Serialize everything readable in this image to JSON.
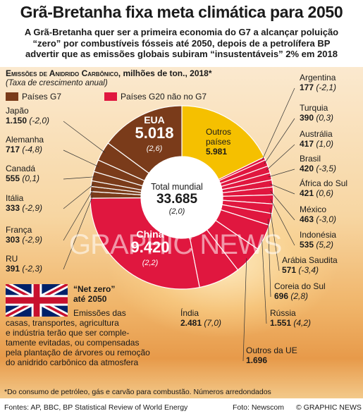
{
  "headline": "Grã-Bretanha fixa meta climática para 2050",
  "subhead": [
    "A Grã-Bretanha quer ser a primeira economia do G7 a alcançar poluição",
    "“zero” por combustíveis fósseis até 2050, depois de a petrolífera BP",
    "advertir que as emissões globais subiram “insustentáveis” 2% em 2018"
  ],
  "section": {
    "title_caps": "Emissões de Anidrido Carbônico",
    "title_rest": ", milhões de ton., 2018*",
    "subtitle": "(Taxa de crescimento anual)"
  },
  "legend": [
    {
      "label": "Países G7",
      "color": "#7a3b1a"
    },
    {
      "label": "Países G20 não no G7",
      "color": "#e0173f"
    }
  ],
  "colors": {
    "g7": "#7a3b1a",
    "g20": "#e0173f",
    "others": "#f5c000",
    "hole": "#ffffff"
  },
  "chart_data": {
    "type": "pie",
    "title": "Emissões de Anidrido Carbônico, milhões de ton., 2018*",
    "total": {
      "label": "Total mundial",
      "value": "33.685",
      "rate": "(2,0)"
    },
    "slices": [
      {
        "name": "Outros países",
        "value": 5981,
        "display": "5.981",
        "rate": "",
        "group": "others"
      },
      {
        "name": "Argentina",
        "value": 177,
        "display": "177",
        "rate": "(-2,1)",
        "group": "g20"
      },
      {
        "name": "Turquia",
        "value": 390,
        "display": "390",
        "rate": "(0,3)",
        "group": "g20"
      },
      {
        "name": "Austrália",
        "value": 417,
        "display": "417",
        "rate": "(1,0)",
        "group": "g20"
      },
      {
        "name": "Brasil",
        "value": 420,
        "display": "420",
        "rate": "(-3,5)",
        "group": "g20"
      },
      {
        "name": "África do Sul",
        "value": 421,
        "display": "421",
        "rate": "(0,6)",
        "group": "g20"
      },
      {
        "name": "México",
        "value": 463,
        "display": "463",
        "rate": "(-3,0)",
        "group": "g20"
      },
      {
        "name": "Indonésia",
        "value": 535,
        "display": "535",
        "rate": "(5,2)",
        "group": "g20"
      },
      {
        "name": "Arábia Saudita",
        "value": 571,
        "display": "571",
        "rate": "(-3,4)",
        "group": "g20"
      },
      {
        "name": "Coreia do Sul",
        "value": 696,
        "display": "696",
        "rate": "(2,8)",
        "group": "g20"
      },
      {
        "name": "Rússia",
        "value": 1551,
        "display": "1.551",
        "rate": "(4,2)",
        "group": "g20"
      },
      {
        "name": "Outros da UE",
        "value": 1696,
        "display": "1.696",
        "rate": "",
        "group": "g20"
      },
      {
        "name": "Índia",
        "value": 2481,
        "display": "2.481",
        "rate": "(7,0)",
        "group": "g20"
      },
      {
        "name": "China",
        "value": 9420,
        "display": "9.420",
        "rate": "(2,2)",
        "group": "g20"
      },
      {
        "name": "RU",
        "value": 391,
        "display": "391",
        "rate": "(-2,3)",
        "group": "g7"
      },
      {
        "name": "França",
        "value": 303,
        "display": "303",
        "rate": "(-2,9)",
        "group": "g7"
      },
      {
        "name": "Itália",
        "value": 333,
        "display": "333",
        "rate": "(-2,9)",
        "group": "g7"
      },
      {
        "name": "Canadá",
        "value": 555,
        "display": "555",
        "rate": "(0,1)",
        "group": "g7"
      },
      {
        "name": "Alemanha",
        "value": 717,
        "display": "717",
        "rate": "(-4,8)",
        "group": "g7"
      },
      {
        "name": "Japão",
        "value": 1150,
        "display": "1.150",
        "rate": "(-2,0)",
        "group": "g7"
      },
      {
        "name": "EUA",
        "value": 5018,
        "display": "5.018",
        "rate": "(2,6)",
        "group": "g7"
      }
    ]
  },
  "netzero": {
    "title": [
      "“Net zero”",
      "até 2050"
    ],
    "body": [
      "Emissões das",
      "casas, transportes, agricultura",
      "e indústria terão que ser comple-",
      "tamente evitadas, ou compensadas",
      "pela plantação de árvores ou remoção",
      "do anidrido carbônico da atmosfera"
    ]
  },
  "watermark": "GRAPHIC NEWS",
  "footnote": "*Do consumo de petróleo, gás e carvão para combustão. Números arredondados",
  "footer": {
    "sources": "Fontes: AP, BBC, BP Statistical Review of World Energy",
    "photo": "Foto: Newscom",
    "credit": "© GRAPHIC NEWS"
  }
}
